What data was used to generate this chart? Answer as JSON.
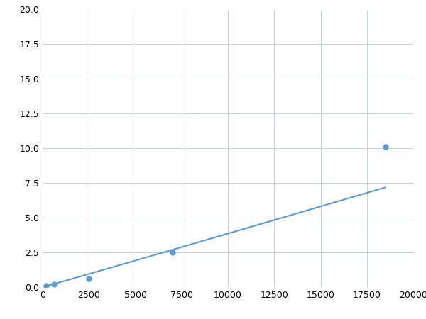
{
  "x": [
    200,
    600,
    2500,
    7000,
    18500
  ],
  "y": [
    0.1,
    0.2,
    0.6,
    2.5,
    10.1
  ],
  "line_color": "#5b9bd5",
  "marker_color": "#5b9bd5",
  "xlim": [
    0,
    20000
  ],
  "ylim": [
    0,
    20.0
  ],
  "xticks": [
    0,
    2500,
    5000,
    7500,
    10000,
    12500,
    15000,
    17500,
    20000
  ],
  "yticks": [
    0.0,
    2.5,
    5.0,
    7.5,
    10.0,
    12.5,
    15.0,
    17.5,
    20.0
  ],
  "grid_color": "#c8d0d8",
  "background_color": "#ffffff",
  "marker_size": 5,
  "line_width": 1.5,
  "figsize": [
    6.0,
    4.5
  ],
  "dpi": 100
}
